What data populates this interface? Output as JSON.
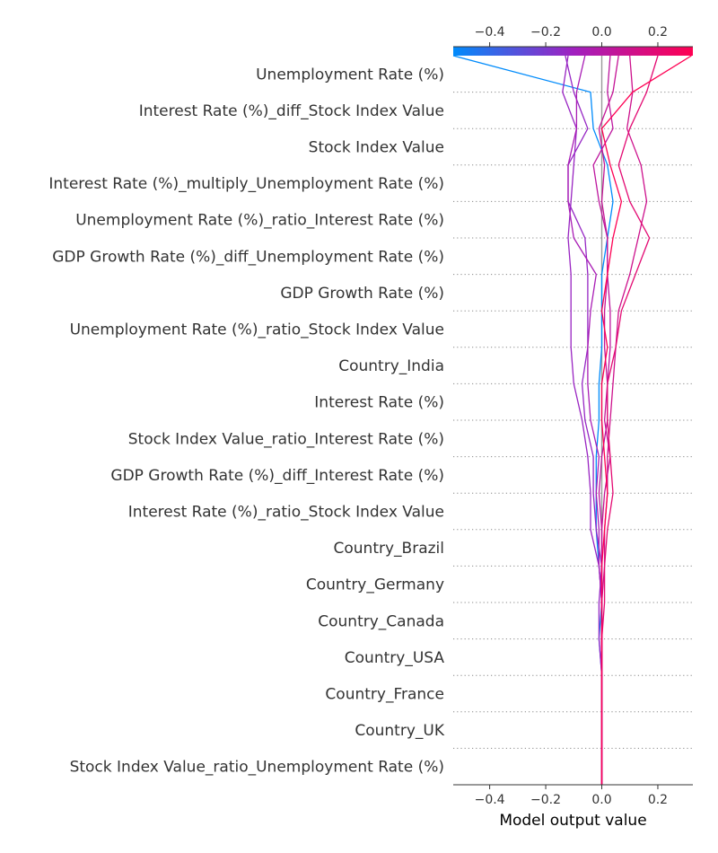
{
  "chart_data": {
    "type": "line",
    "subtype": "shap-decision-plot",
    "xlabel": "Model output value",
    "xlim": [
      -0.53,
      0.325
    ],
    "xticks": [
      -0.4,
      -0.2,
      0.0,
      0.2
    ],
    "xtick_labels": [
      "−0.4",
      "−0.2",
      "0.0",
      "0.2"
    ],
    "base_value": 0.0,
    "grid": "dotted horizontal per feature",
    "colormap": {
      "low": "#008bfb",
      "mid": "#a020c0",
      "high": "#ff0052"
    },
    "features": [
      "Unemployment Rate (%)",
      "Interest Rate (%)_diff_Stock Index Value",
      "Stock Index Value",
      "Interest Rate (%)_multiply_Unemployment Rate (%)",
      "Unemployment Rate (%)_ratio_Interest Rate (%)",
      "GDP Growth Rate (%)_diff_Unemployment Rate (%)",
      "GDP Growth Rate (%)",
      "Unemployment Rate (%)_ratio_Stock Index Value",
      "Country_India",
      "Interest Rate (%)",
      "Stock Index Value_ratio_Interest Rate (%)",
      "GDP Growth Rate (%)_diff_Interest Rate (%)",
      "Interest Rate (%)_ratio_Stock Index Value",
      "Country_Brazil",
      "Country_Germany",
      "Country_Canada",
      "Country_USA",
      "Country_France",
      "Country_UK",
      "Stock Index Value_ratio_Unemployment Rate (%)"
    ],
    "series_note": "values listed from base (bottom, feature 20) to top (feature 1 output)",
    "series": [
      {
        "values": [
          0.0,
          0.0,
          0.0,
          0.0,
          -0.01,
          0.0,
          -0.01,
          -0.02,
          -0.02,
          -0.02,
          -0.01,
          -0.01,
          0.0,
          0.0,
          0.0,
          0.02,
          0.04,
          0.02,
          -0.03,
          -0.04,
          -0.53
        ]
      },
      {
        "values": [
          0.0,
          0.0,
          0.0,
          0.0,
          0.0,
          0.0,
          -0.01,
          -0.04,
          -0.04,
          -0.05,
          -0.07,
          -0.1,
          -0.11,
          -0.11,
          -0.11,
          -0.12,
          -0.11,
          -0.1,
          -0.09,
          -0.14,
          -0.12
        ]
      },
      {
        "values": [
          0.0,
          0.0,
          0.0,
          0.0,
          -0.01,
          -0.01,
          0.0,
          -0.02,
          -0.03,
          -0.03,
          -0.06,
          -0.07,
          -0.05,
          -0.05,
          -0.05,
          -0.06,
          -0.12,
          -0.12,
          -0.05,
          -0.1,
          -0.13
        ]
      },
      {
        "values": [
          0.0,
          0.0,
          0.0,
          0.0,
          0.0,
          0.0,
          -0.01,
          -0.01,
          -0.02,
          -0.01,
          -0.04,
          -0.05,
          -0.05,
          -0.04,
          -0.02,
          -0.1,
          -0.12,
          -0.12,
          -0.09,
          -0.09,
          -0.06
        ]
      },
      {
        "values": [
          0.0,
          0.0,
          0.0,
          0.0,
          0.0,
          0.0,
          0.0,
          0.0,
          -0.01,
          0.0,
          0.02,
          0.02,
          0.03,
          0.03,
          0.02,
          0.02,
          -0.01,
          -0.03,
          0.04,
          0.02,
          0.03
        ]
      },
      {
        "values": [
          0.0,
          0.0,
          0.0,
          0.0,
          0.0,
          0.0,
          0.0,
          0.0,
          0.01,
          0.03,
          0.01,
          0.02,
          0.01,
          0.01,
          0.02,
          0.02,
          0.0,
          0.01,
          -0.01,
          0.04,
          0.06
        ]
      },
      {
        "values": [
          0.0,
          0.0,
          0.0,
          0.0,
          0.0,
          0.0,
          0.01,
          0.01,
          0.02,
          0.02,
          0.03,
          0.04,
          0.05,
          0.06,
          0.1,
          0.13,
          0.16,
          0.14,
          0.09,
          0.11,
          0.1
        ]
      },
      {
        "values": [
          0.0,
          0.0,
          0.0,
          0.0,
          0.0,
          0.01,
          0.01,
          0.02,
          0.04,
          0.03,
          0.02,
          0.02,
          0.05,
          0.07,
          0.12,
          0.17,
          0.1,
          0.06,
          0.1,
          0.16,
          0.2
        ]
      },
      {
        "values": [
          0.0,
          0.0,
          0.0,
          0.0,
          0.0,
          0.0,
          0.0,
          0.01,
          0.02,
          0.01,
          0.0,
          0.0,
          0.02,
          0.0,
          0.02,
          0.04,
          0.07,
          0.03,
          0.0,
          0.11,
          0.32
        ]
      }
    ]
  }
}
